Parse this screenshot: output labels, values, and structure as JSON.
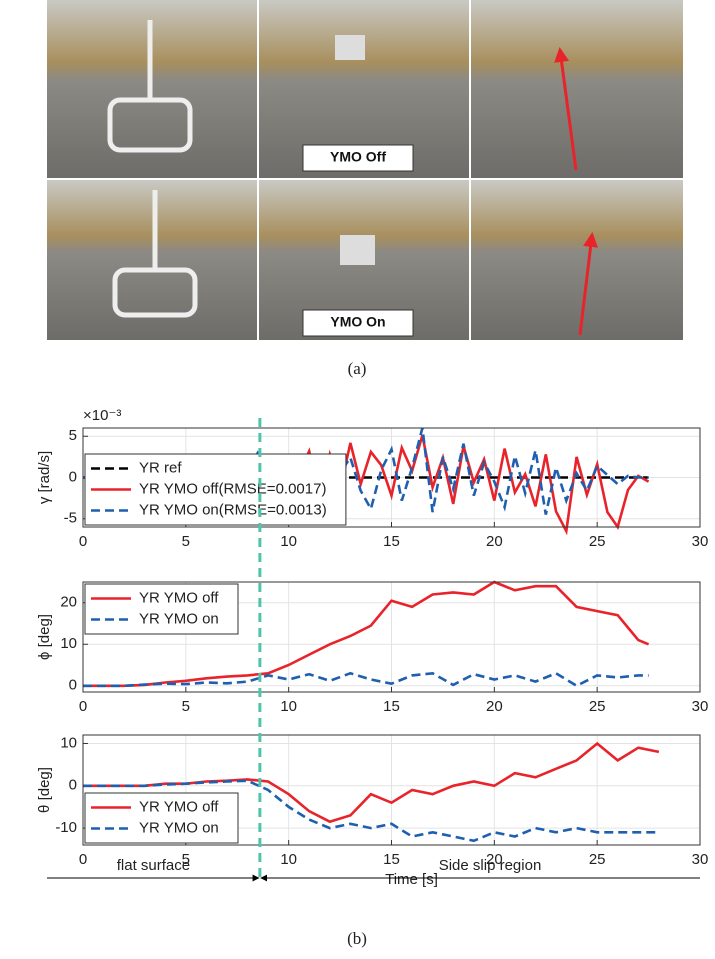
{
  "panel_a": {
    "labels": [
      "YMO Off",
      "YMO On"
    ],
    "caption": "(a)"
  },
  "panel_b": {
    "caption": "(b)"
  },
  "regions": {
    "divider": 8.6,
    "left": "flat surface",
    "right": "Side slip region"
  },
  "chart_data": [
    {
      "type": "line",
      "ylabel": "γ [rad/s]",
      "multiplier": "×10⁻³",
      "grid": true,
      "legend": "lower left",
      "xlim": [
        0,
        30
      ],
      "xticks": [
        0,
        5,
        10,
        15,
        20,
        25,
        30
      ],
      "ylim": [
        -6,
        6
      ],
      "yticks": [
        -5,
        0,
        5
      ],
      "x": [
        0,
        0.5,
        1,
        1.5,
        2,
        2.5,
        3,
        3.5,
        4,
        4.5,
        5,
        5.5,
        6,
        6.5,
        7,
        7.5,
        8,
        8.5,
        9,
        9.5,
        10,
        10.5,
        11,
        11.5,
        12,
        12.5,
        13,
        13.5,
        14,
        14.5,
        15,
        15.5,
        16,
        16.5,
        17,
        17.5,
        18,
        18.5,
        19,
        19.5,
        20,
        20.5,
        21,
        21.5,
        22,
        22.5,
        23,
        23.5,
        24,
        24.5,
        25,
        25.5,
        26,
        26.5,
        27,
        27.5
      ],
      "series": [
        {
          "name": "YR ref",
          "color": "#000000",
          "style": "dashed",
          "values": [
            0,
            0,
            0,
            0,
            0,
            0,
            0,
            0,
            0,
            0,
            0,
            0,
            0,
            0,
            0,
            0,
            0,
            0,
            0,
            0,
            0,
            0,
            0,
            0,
            0,
            0,
            0,
            0,
            0,
            0,
            0,
            0,
            0,
            0,
            0,
            0,
            0,
            0,
            0,
            0,
            0,
            0,
            0,
            0,
            0,
            0,
            0,
            0,
            0,
            0,
            0,
            0,
            0,
            0,
            0,
            0
          ]
        },
        {
          "name": "YR YMO off(RMSE=0.0017)",
          "color": "#e8232a",
          "style": "solid",
          "values": [
            0,
            0,
            0,
            0,
            0,
            0.5,
            -0.5,
            0.8,
            -0.3,
            0.6,
            0.2,
            -0.5,
            0.7,
            0.4,
            -0.6,
            0.9,
            0.3,
            -0.4,
            1.5,
            -1.8,
            2.5,
            0.5,
            3.2,
            -2.4,
            2.8,
            -1.5,
            4.2,
            -0.8,
            3.1,
            1.5,
            -2.2,
            3.6,
            0.8,
            5.1,
            -1.2,
            2.4,
            -3.2,
            3.8,
            -0.6,
            2.2,
            -2.8,
            3.5,
            -1.8,
            0.4,
            -3.5,
            2.8,
            -4.1,
            -6.5,
            2.5,
            -2.1,
            1.6,
            -4.2,
            -6.0,
            -1.5,
            0.2,
            -0.5
          ]
        },
        {
          "name": "YR YMO on(RMSE=0.0013)",
          "color": "#1f5fb0",
          "style": "dashed",
          "values": [
            0,
            0,
            0,
            0,
            0,
            0.3,
            0.2,
            -0.4,
            0.5,
            -0.2,
            0.3,
            0.4,
            -0.3,
            0.2,
            0.5,
            -0.4,
            0.6,
            3.0,
            1.5,
            -1.2,
            0.8,
            2.1,
            -2.5,
            1.9,
            -3.2,
            0.6,
            2.4,
            -1.6,
            -3.8,
            0.9,
            3.4,
            -2.8,
            1.2,
            6.0,
            -4.2,
            2.5,
            -1.4,
            4.1,
            -2.2,
            1.8,
            -0.5,
            -3.6,
            2.6,
            -1.9,
            3.3,
            -4.5,
            1.2,
            -2.8,
            0.5,
            -1.6,
            1.4,
            0.3,
            -0.8,
            0.2,
            0,
            0
          ]
        }
      ]
    },
    {
      "type": "line",
      "ylabel": "ϕ [deg]",
      "grid": true,
      "legend": "upper left",
      "xlim": [
        0,
        30
      ],
      "xticks": [
        0,
        5,
        10,
        15,
        20,
        25,
        30
      ],
      "ylim": [
        -1.5,
        25
      ],
      "yticks": [
        0,
        10,
        20
      ],
      "x": [
        0,
        1,
        2,
        3,
        4,
        5,
        6,
        7,
        8,
        9,
        10,
        11,
        12,
        13,
        14,
        15,
        16,
        17,
        18,
        19,
        20,
        21,
        22,
        23,
        24,
        25,
        26,
        27,
        27.5
      ],
      "series": [
        {
          "name": "YR YMO off",
          "color": "#e8232a",
          "style": "solid",
          "values": [
            0,
            0,
            0,
            0.2,
            0.8,
            1.2,
            1.8,
            2.2,
            2.5,
            3.0,
            5.0,
            7.5,
            10,
            12,
            14.5,
            20.5,
            19,
            22,
            22.5,
            22,
            25,
            23,
            24,
            24,
            19,
            18,
            17,
            11,
            10
          ]
        },
        {
          "name": "YR YMO on",
          "color": "#1f5fb0",
          "style": "dashed",
          "values": [
            0,
            0,
            0,
            0.3,
            0.5,
            0.4,
            0.8,
            0.6,
            1.0,
            2.5,
            1.5,
            2.8,
            1.2,
            3.0,
            1.5,
            0.5,
            2.5,
            3.0,
            0.2,
            2.8,
            1.5,
            2.5,
            1.0,
            3.0,
            0,
            2.5,
            2.0,
            2.5,
            2.5
          ]
        }
      ]
    },
    {
      "type": "line",
      "ylabel": "θ [deg]",
      "xlabel": "Time [s]",
      "grid": true,
      "legend": "lower left",
      "xlim": [
        0,
        30
      ],
      "xticks": [
        0,
        5,
        10,
        15,
        20,
        25,
        30
      ],
      "ylim": [
        -14,
        12
      ],
      "yticks": [
        -10,
        0,
        10
      ],
      "x": [
        0,
        1,
        2,
        3,
        4,
        5,
        6,
        7,
        8,
        9,
        10,
        11,
        12,
        13,
        14,
        15,
        16,
        17,
        18,
        19,
        20,
        21,
        22,
        23,
        24,
        25,
        26,
        27,
        28
      ],
      "series": [
        {
          "name": "YR YMO off",
          "color": "#e8232a",
          "style": "solid",
          "values": [
            0,
            0,
            0,
            0,
            0.5,
            0.5,
            1,
            1.2,
            1.5,
            1,
            -2,
            -6,
            -8.5,
            -7,
            -2,
            -4,
            -1,
            -2,
            0,
            1,
            0,
            3,
            2,
            4,
            6,
            10,
            6,
            9,
            8
          ]
        },
        {
          "name": "YR YMO on",
          "color": "#1f5fb0",
          "style": "dashed",
          "values": [
            0,
            0,
            0,
            0,
            0.3,
            0.5,
            0.8,
            1,
            1.2,
            -1,
            -5,
            -8,
            -10,
            -9,
            -10,
            -9,
            -12,
            -11,
            -12,
            -13,
            -11,
            -12,
            -10,
            -11,
            -10,
            -11,
            -11,
            -11,
            -11
          ]
        }
      ]
    }
  ]
}
